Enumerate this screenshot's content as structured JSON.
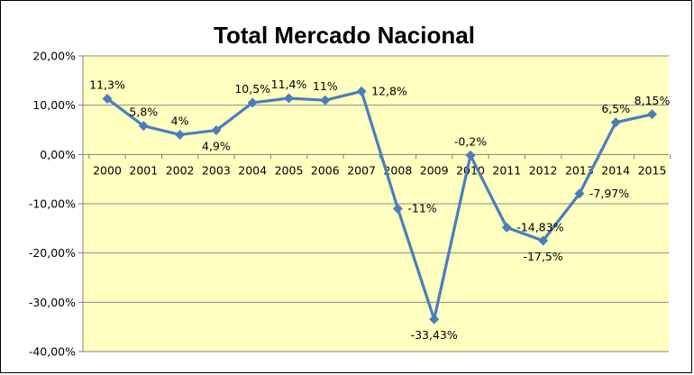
{
  "chart_data": {
    "type": "line",
    "title": "Total Mercado Nacional",
    "xlabel": "",
    "ylabel": "",
    "categories": [
      "2000",
      "2001",
      "2002",
      "2003",
      "2004",
      "2005",
      "2006",
      "2007",
      "2008",
      "2009",
      "2010",
      "2011",
      "2012",
      "2013",
      "2014",
      "2015"
    ],
    "series": [
      {
        "values": [
          11.3,
          5.8,
          4.0,
          4.9,
          10.5,
          11.4,
          11.0,
          12.8,
          -11.0,
          -33.43,
          -0.2,
          -14.83,
          -17.5,
          -7.97,
          6.5,
          8.15
        ],
        "labels": [
          "11,3%",
          "5,8%",
          "4%",
          "4,9%",
          "10,5%",
          "11,4%",
          "11%",
          "12,8%",
          "-11%",
          "-33,43%",
          "-0,2%",
          "-14,83%",
          "-17,5%",
          "-7,97%",
          "6,5%",
          "8,15%"
        ],
        "label_position": [
          "above",
          "above",
          "above",
          "below",
          "above",
          "above",
          "above",
          "right",
          "right",
          "below",
          "above",
          "right",
          "below",
          "right",
          "above",
          "above"
        ]
      }
    ],
    "ylim": [
      -40,
      20
    ],
    "yticks": [
      20,
      10,
      0,
      -10,
      -20,
      -30,
      -40
    ],
    "ytick_labels": [
      "20,00%",
      "10,00%",
      "0,00%",
      "-10,00%",
      "-20,00%",
      "-30,00%",
      "-40,00%"
    ],
    "grid": true,
    "legend": "none",
    "colors": {
      "plot_background": "#ffffc0",
      "chart_background": "#ffffff",
      "line": "#4a7ebb",
      "gridline": "#8c8c8c",
      "axis": "#808080"
    }
  }
}
